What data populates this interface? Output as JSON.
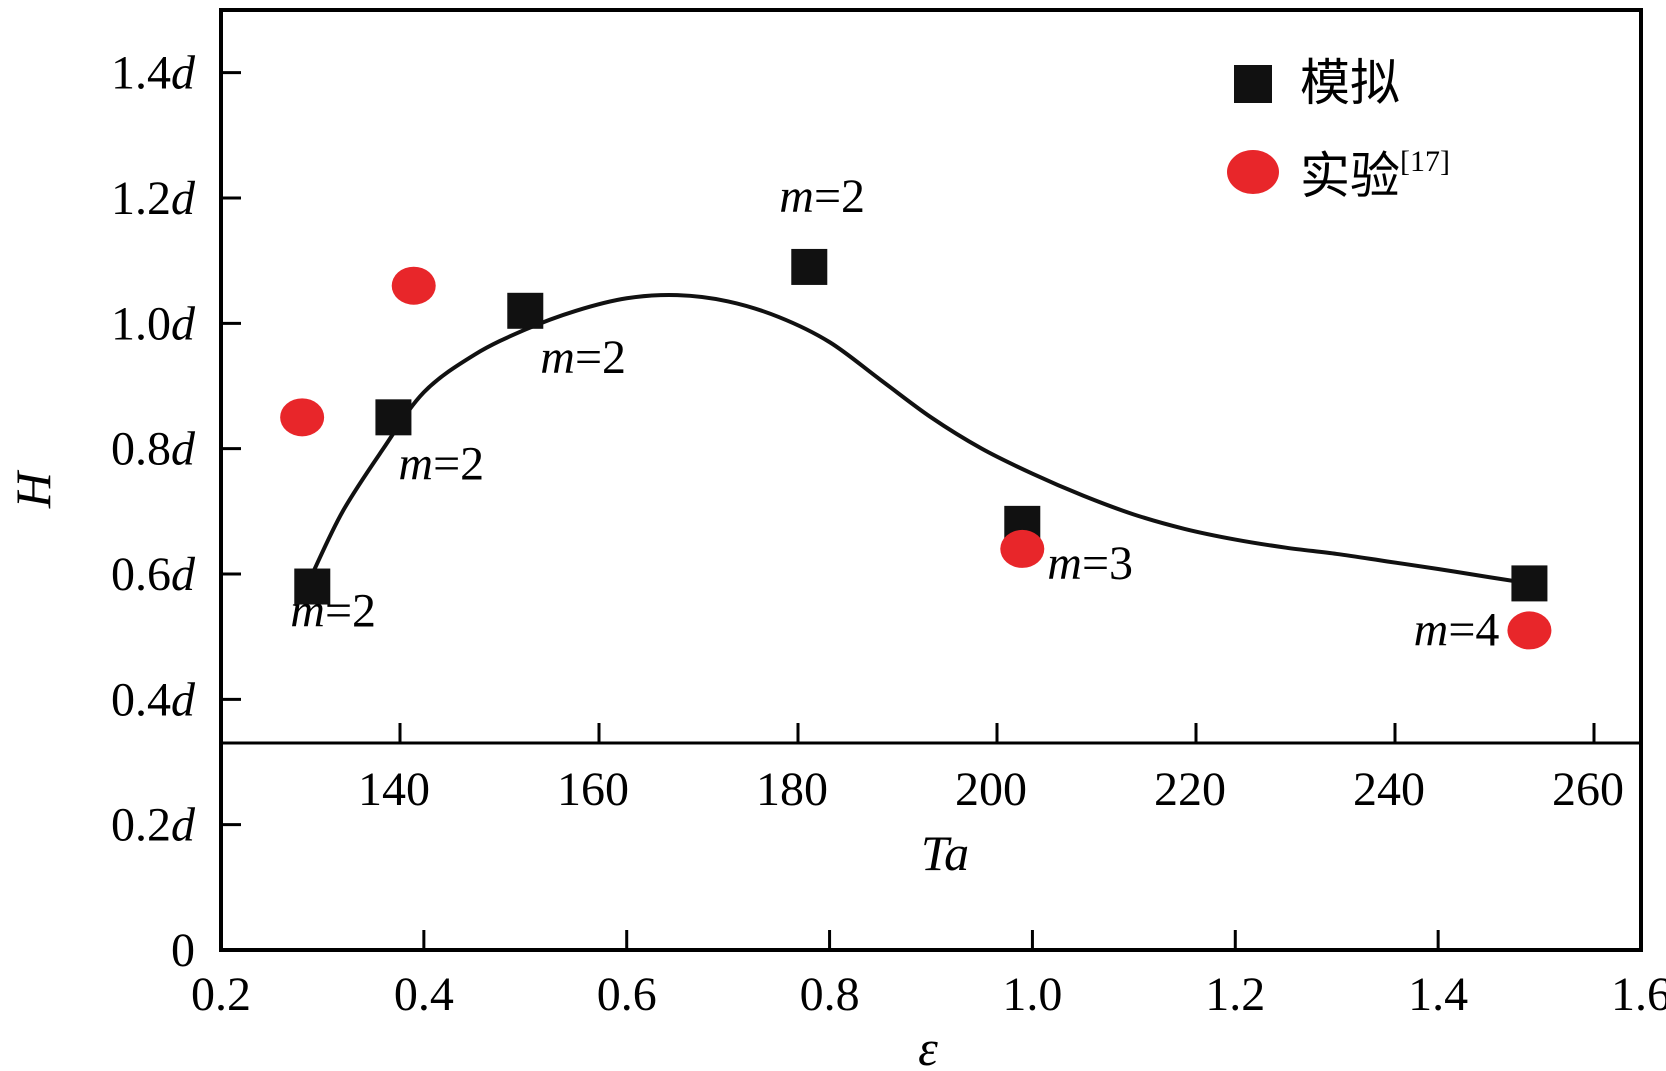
{
  "chart_data": {
    "type": "scatter",
    "x_primary": {
      "label": "ε",
      "ticks": [
        "0.2",
        "0.4",
        "0.6",
        "0.8",
        "1.0",
        "1.2",
        "1.4",
        "1.6"
      ],
      "range": [
        0.2,
        1.6
      ]
    },
    "x_secondary": {
      "label": "Ta",
      "ticks": [
        "140",
        "160",
        "180",
        "200",
        "220",
        "240",
        "260"
      ]
    },
    "y": {
      "label": "H",
      "ticks": [
        "0",
        "0.2d",
        "0.4d",
        "0.6d",
        "0.8d",
        "1.0d",
        "1.2d",
        "1.4d"
      ],
      "range": [
        0,
        1.5
      ]
    },
    "legend": {
      "position": "top-right",
      "entries": [
        {
          "name": "模拟",
          "marker": "square",
          "color": "#111111"
        },
        {
          "name": "实验",
          "sup": "[17]",
          "marker": "circle",
          "color": "#e8262a"
        }
      ]
    },
    "series": [
      {
        "name": "模拟",
        "marker": "square",
        "points": [
          {
            "x": 0.29,
            "y": 0.58
          },
          {
            "x": 0.37,
            "y": 0.85
          },
          {
            "x": 0.5,
            "y": 1.02
          },
          {
            "x": 0.78,
            "y": 1.09
          },
          {
            "x": 0.99,
            "y": 0.68
          },
          {
            "x": 1.49,
            "y": 0.585
          }
        ]
      },
      {
        "name": "实验",
        "marker": "circle",
        "points": [
          {
            "x": 0.28,
            "y": 0.85
          },
          {
            "x": 0.39,
            "y": 1.06
          },
          {
            "x": 0.99,
            "y": 0.64
          },
          {
            "x": 1.49,
            "y": 0.51
          }
        ]
      }
    ],
    "fit_curve": {
      "points": [
        [
          0.29,
          0.6
        ],
        [
          0.32,
          0.7
        ],
        [
          0.36,
          0.8
        ],
        [
          0.4,
          0.89
        ],
        [
          0.45,
          0.95
        ],
        [
          0.5,
          0.99
        ],
        [
          0.55,
          1.02
        ],
        [
          0.6,
          1.04
        ],
        [
          0.65,
          1.045
        ],
        [
          0.7,
          1.035
        ],
        [
          0.75,
          1.01
        ],
        [
          0.8,
          0.97
        ],
        [
          0.85,
          0.91
        ],
        [
          0.9,
          0.85
        ],
        [
          0.95,
          0.8
        ],
        [
          1.0,
          0.76
        ],
        [
          1.05,
          0.725
        ],
        [
          1.1,
          0.695
        ],
        [
          1.15,
          0.672
        ],
        [
          1.2,
          0.655
        ],
        [
          1.25,
          0.642
        ],
        [
          1.3,
          0.632
        ],
        [
          1.35,
          0.62
        ],
        [
          1.4,
          0.608
        ],
        [
          1.45,
          0.595
        ],
        [
          1.49,
          0.585
        ]
      ]
    },
    "annotations": [
      {
        "var": "m",
        "value": "=2",
        "x": 0.29,
        "y": 0.58
      },
      {
        "var": "m",
        "value": "=2",
        "x": 0.37,
        "y": 0.85
      },
      {
        "var": "m",
        "value": "=2",
        "x": 0.5,
        "y": 1.02
      },
      {
        "var": "m",
        "value": "=2",
        "x": 0.78,
        "y": 1.09
      },
      {
        "var": "m",
        "value": "=3",
        "x": 0.99,
        "y": 0.68
      },
      {
        "var": "m",
        "value": "=4",
        "x": 1.49,
        "y": 0.585
      }
    ]
  }
}
